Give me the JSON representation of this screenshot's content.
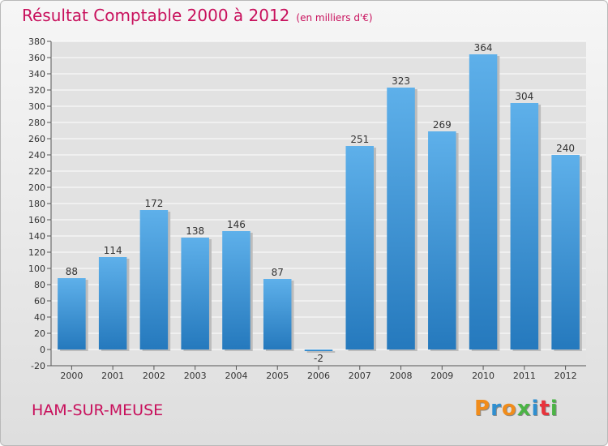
{
  "header": {
    "title": "Résultat Comptable 2000 à 2012",
    "subtitle": "(en milliers d'€)"
  },
  "footer": {
    "city": "HAM-SUR-MEUSE",
    "logo": [
      "P",
      "r",
      "o",
      "x",
      "i",
      "t",
      "i"
    ]
  },
  "colors": {
    "title": "#c8105c",
    "bar_top": "#5eb0ea",
    "bar_bottom": "#2579bd",
    "grid": "#ffffff",
    "logo": [
      "#f08c1b",
      "#2f8fd0",
      "#f08c1b",
      "#4bb445",
      "#2f8fd0",
      "#e8333b",
      "#4bb445"
    ]
  },
  "chart_data": {
    "type": "bar",
    "title": "Résultat Comptable 2000 à 2012",
    "subtitle": "(en milliers d'€)",
    "categories": [
      "2000",
      "2001",
      "2002",
      "2003",
      "2004",
      "2005",
      "2006",
      "2007",
      "2008",
      "2009",
      "2010",
      "2011",
      "2012"
    ],
    "values": [
      88,
      114,
      172,
      138,
      146,
      87,
      -2,
      251,
      323,
      269,
      364,
      304,
      240
    ],
    "ylim": [
      -20,
      380
    ],
    "ytick_step": 20,
    "grid": true,
    "data_labels": true
  }
}
